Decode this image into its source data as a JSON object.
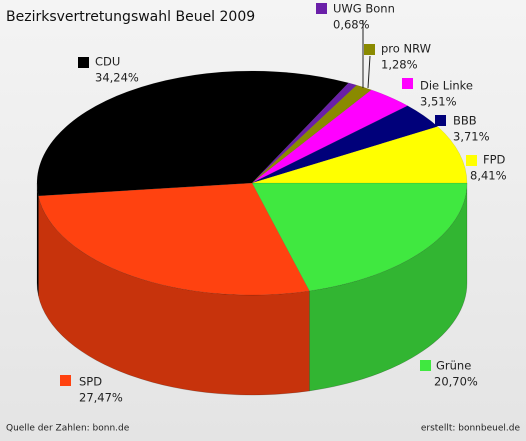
{
  "chart_data": {
    "type": "pie",
    "title": "Bezirksvertretungswahl Beuel 2009",
    "categories": [
      "Grüne",
      "SPD",
      "CDU",
      "UWG Bonn",
      "pro NRW",
      "Die Linke",
      "BBB",
      "FPD"
    ],
    "values": [
      20.7,
      27.47,
      34.24,
      0.68,
      1.28,
      3.51,
      3.71,
      8.41
    ],
    "value_labels": [
      "20,70%",
      "27,47%",
      "34,24%",
      "0,68%",
      "1,28%",
      "3,51%",
      "3,71%",
      "8,41%"
    ],
    "colors": [
      "#40e840",
      "#ff4210",
      "#000000",
      "#6a1fa8",
      "#8a8a00",
      "#ff00ff",
      "#00007a",
      "#ffff00"
    ],
    "annotations": [
      "Quelle der Zahlen: bonn.de",
      "erstellt: bonnbeuel.de"
    ]
  }
}
